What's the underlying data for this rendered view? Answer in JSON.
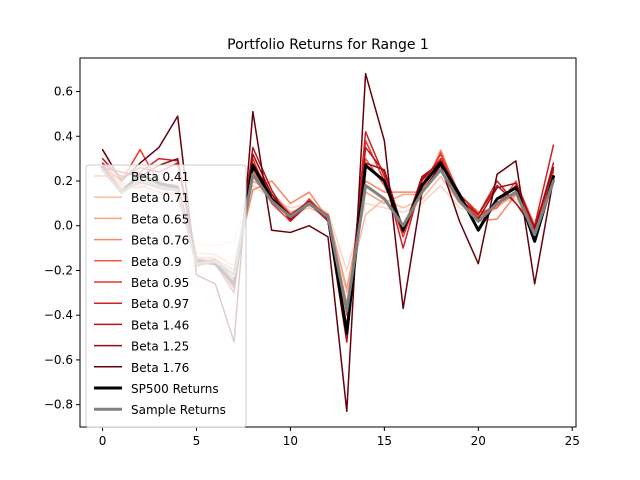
{
  "chart_data": {
    "type": "line",
    "title": "Portfolio Returns for Range 1",
    "xlabel": "",
    "ylabel": "",
    "xlim": [
      -1.2,
      25.2
    ],
    "ylim": [
      -0.9,
      0.75
    ],
    "xticks": [
      0,
      5,
      10,
      15,
      20,
      25
    ],
    "xtick_labels": [
      "0",
      "5",
      "10",
      "15",
      "20",
      "25"
    ],
    "yticks": [
      -0.8,
      -0.6,
      -0.4,
      -0.2,
      0.0,
      0.2,
      0.4,
      0.6
    ],
    "ytick_labels": [
      "−0.8",
      "−0.6",
      "−0.4",
      "−0.2",
      "0.0",
      "0.2",
      "0.4",
      "0.6"
    ],
    "grid": false,
    "legend_position": "center-left",
    "x": [
      0,
      1,
      2,
      3,
      4,
      5,
      6,
      7,
      8,
      9,
      10,
      11,
      12,
      13,
      14,
      15,
      16,
      17,
      18,
      19,
      20,
      21,
      22,
      23,
      24
    ],
    "series": [
      {
        "name": "Beta 0.41",
        "color": "#fdd5c4",
        "width": 1.5,
        "values": [
          0.25,
          0.18,
          0.16,
          0.14,
          0.15,
          -0.08,
          -0.09,
          -0.07,
          0.18,
          0.12,
          0.08,
          0.1,
          0.06,
          -0.2,
          0.1,
          0.08,
          0.06,
          0.1,
          0.18,
          0.08,
          0.05,
          0.1,
          0.12,
          0.02,
          0.18
        ]
      },
      {
        "name": "Beta 0.71",
        "color": "#fcbba1",
        "width": 1.5,
        "values": [
          0.26,
          0.17,
          0.2,
          0.17,
          0.13,
          -0.15,
          -0.14,
          -0.25,
          0.22,
          0.1,
          0.05,
          0.08,
          0.04,
          -0.3,
          0.05,
          0.12,
          0.08,
          0.12,
          0.22,
          0.1,
          0.03,
          0.08,
          0.15,
          -0.01,
          0.2
        ]
      },
      {
        "name": "Beta 0.65",
        "color": "#fc9f81",
        "width": 1.5,
        "values": [
          0.25,
          0.19,
          0.18,
          0.15,
          0.14,
          -0.12,
          -0.13,
          -0.18,
          0.2,
          0.15,
          0.06,
          0.09,
          0.05,
          -0.28,
          0.15,
          0.1,
          0.14,
          0.14,
          0.34,
          0.12,
          0.04,
          0.09,
          0.14,
          0.0,
          0.2
        ]
      },
      {
        "name": "Beta 0.76",
        "color": "#fb8464",
        "width": 1.5,
        "values": [
          0.27,
          0.18,
          0.17,
          0.2,
          0.15,
          -0.14,
          -0.15,
          -0.2,
          0.16,
          0.2,
          0.1,
          0.15,
          0.03,
          -0.35,
          0.2,
          0.15,
          0.15,
          0.15,
          0.3,
          0.13,
          0.02,
          0.03,
          0.14,
          -0.02,
          0.22
        ]
      },
      {
        "name": "Beta 0.9",
        "color": "#f6583e",
        "width": 1.5,
        "values": [
          0.28,
          0.16,
          0.19,
          0.18,
          0.16,
          -0.16,
          -0.17,
          -0.22,
          0.25,
          0.12,
          0.04,
          0.1,
          0.05,
          -0.4,
          0.3,
          0.18,
          0.0,
          0.16,
          0.33,
          0.14,
          0.06,
          0.08,
          0.2,
          0.0,
          0.24
        ]
      },
      {
        "name": "Beta 0.95",
        "color": "#eb372a",
        "width": 1.5,
        "values": [
          0.27,
          0.2,
          0.34,
          0.19,
          0.18,
          -0.18,
          -0.16,
          -0.24,
          0.3,
          0.1,
          0.02,
          0.12,
          0.03,
          -0.45,
          0.38,
          0.2,
          -0.05,
          0.18,
          0.32,
          0.12,
          0.04,
          0.1,
          0.18,
          -0.03,
          0.25
        ]
      },
      {
        "name": "Beta 0.97",
        "color": "#d11f25",
        "width": 1.5,
        "values": [
          0.28,
          0.22,
          0.24,
          0.3,
          0.29,
          -0.17,
          -0.15,
          -0.27,
          0.28,
          0.14,
          0.05,
          0.11,
          0.04,
          -0.48,
          0.42,
          0.22,
          -0.1,
          0.2,
          0.3,
          0.14,
          0.05,
          0.2,
          0.1,
          0.0,
          0.36
        ]
      },
      {
        "name": "Beta 1.46",
        "color": "#b81419",
        "width": 1.5,
        "values": [
          0.3,
          0.21,
          0.26,
          0.24,
          0.28,
          -0.16,
          -0.17,
          -0.3,
          0.35,
          0.16,
          0.02,
          0.1,
          0.02,
          -0.52,
          0.35,
          0.24,
          -0.03,
          0.22,
          0.28,
          0.12,
          0.05,
          0.18,
          0.1,
          -0.02,
          0.28
        ]
      },
      {
        "name": "Beta 1.25",
        "color": "#980c13",
        "width": 1.5,
        "values": [
          0.26,
          0.24,
          0.22,
          0.27,
          0.3,
          -0.15,
          -0.16,
          -0.28,
          0.32,
          0.14,
          0.03,
          0.11,
          0.03,
          -0.5,
          0.28,
          0.25,
          -0.02,
          0.21,
          0.29,
          0.11,
          0.03,
          0.17,
          0.19,
          -0.01,
          0.26
        ]
      },
      {
        "name": "Beta 1.76",
        "color": "#67000d",
        "width": 1.5,
        "values": [
          0.34,
          0.2,
          0.28,
          0.35,
          0.49,
          -0.22,
          -0.26,
          -0.52,
          0.51,
          -0.02,
          -0.03,
          0.0,
          -0.05,
          -0.83,
          0.68,
          0.38,
          -0.37,
          0.15,
          0.27,
          0.02,
          -0.17,
          0.23,
          0.29,
          -0.26,
          0.21
        ]
      },
      {
        "name": "SP500 Returns",
        "color": "#000000",
        "width": 3,
        "values": [
          0.26,
          0.15,
          0.23,
          0.19,
          0.17,
          -0.16,
          -0.17,
          -0.26,
          0.27,
          0.12,
          0.04,
          0.1,
          0.04,
          -0.48,
          0.27,
          0.2,
          -0.02,
          0.18,
          0.28,
          0.14,
          -0.02,
          0.12,
          0.17,
          -0.07,
          0.22
        ]
      },
      {
        "name": "Sample Returns",
        "color": "#808080",
        "width": 3,
        "values": [
          0.25,
          0.15,
          0.2,
          0.17,
          0.16,
          -0.17,
          -0.16,
          -0.22,
          0.23,
          0.11,
          0.04,
          0.1,
          0.04,
          -0.38,
          0.18,
          0.12,
          0.0,
          0.15,
          0.25,
          0.11,
          0.02,
          0.1,
          0.15,
          -0.04,
          0.2
        ]
      }
    ]
  }
}
